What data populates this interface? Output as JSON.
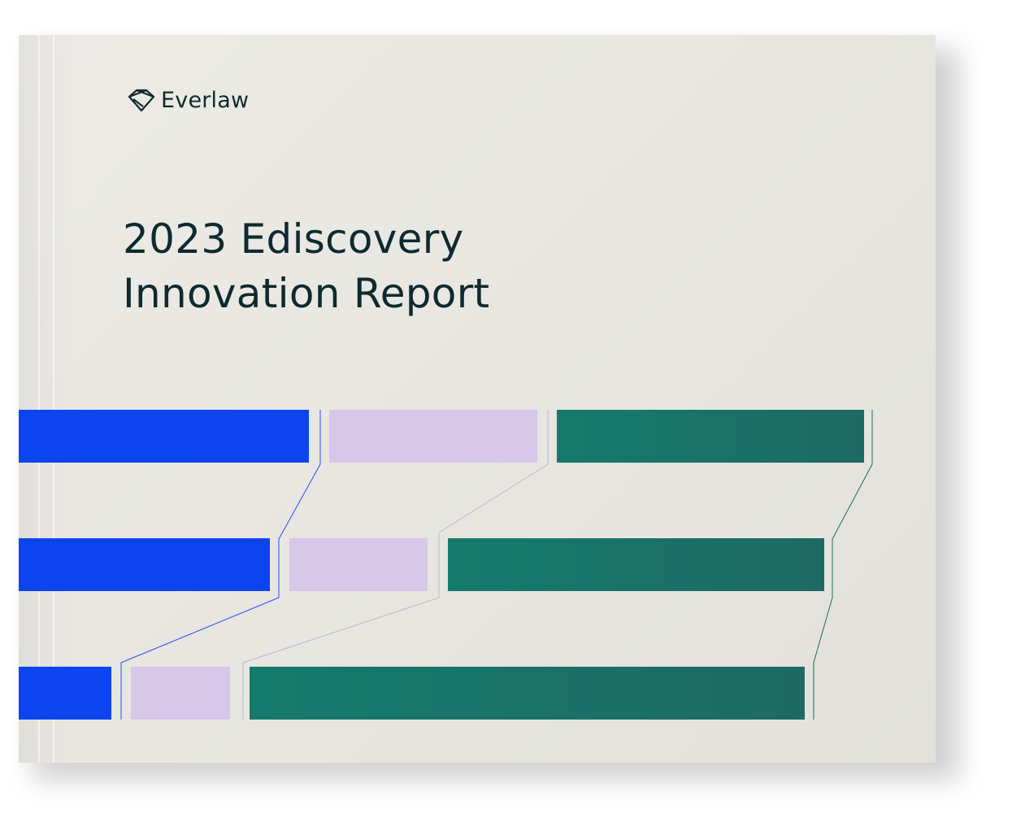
{
  "brand": {
    "name": "Everlaw",
    "icon": "everlaw-logo-icon"
  },
  "title": {
    "line1": "2023 Ediscovery",
    "line2": "Innovation Report"
  },
  "colors": {
    "blue": "#0c45f0",
    "lavender": "#d7c7e8",
    "teal": "#197267",
    "text": "#0f2a2e"
  }
}
